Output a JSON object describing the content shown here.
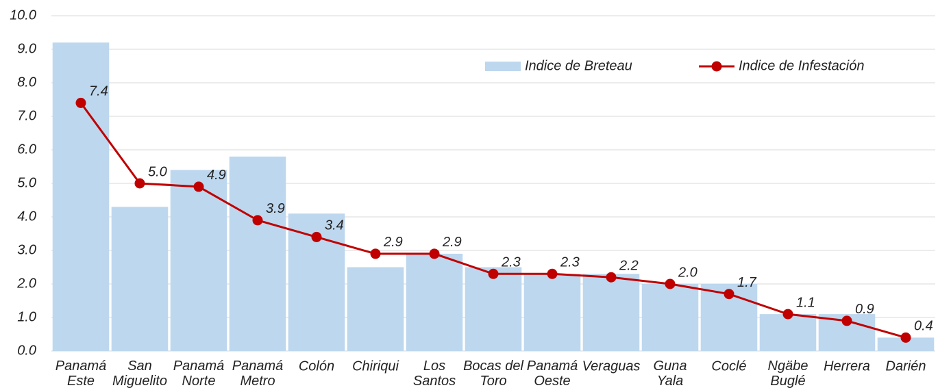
{
  "chart_data": {
    "type": "bar_line",
    "categories": [
      "Panamá\nEste",
      "San\nMiguelito",
      "Panamá\nNorte",
      "Panamá\nMetro",
      "Colón",
      "Chiriqui",
      "Los\nSantos",
      "Bocas del\nToro",
      "Panamá\nOeste",
      "Veraguas",
      "Guna\nYala",
      "Coclé",
      "Ngäbe\nBuglé",
      "Herrera",
      "Darién"
    ],
    "series": [
      {
        "name": "Indice de Breteau",
        "type": "bar",
        "color": "#bdd7ee",
        "values": [
          9.2,
          4.3,
          5.4,
          5.8,
          4.1,
          2.5,
          2.9,
          2.5,
          2.3,
          2.3,
          2.0,
          2.0,
          1.1,
          1.1,
          0.4
        ]
      },
      {
        "name": "Indice de Infestación",
        "type": "line",
        "color": "#c00000",
        "values": [
          7.4,
          5.0,
          4.9,
          3.9,
          3.4,
          2.9,
          2.9,
          2.3,
          2.3,
          2.2,
          2.0,
          1.7,
          1.1,
          0.9,
          0.4
        ],
        "value_labels": [
          "7.4",
          "5.0",
          "4.9",
          "3.9",
          "3.4",
          "2.9",
          "2.9",
          "2.3",
          "2.3",
          "2.2",
          "2.0",
          "1.7",
          "1.1",
          "0.9",
          "0.4"
        ]
      }
    ],
    "ylim": [
      0,
      10
    ],
    "yticks": [
      {
        "value": 0,
        "label": "0.0"
      },
      {
        "value": 1,
        "label": "1.0"
      },
      {
        "value": 2,
        "label": "2.0"
      },
      {
        "value": 3,
        "label": "3.0"
      },
      {
        "value": 4,
        "label": "4.0"
      },
      {
        "value": 5,
        "label": "5.0"
      },
      {
        "value": 6,
        "label": "6.0"
      },
      {
        "value": 7,
        "label": "7.0"
      },
      {
        "value": 8,
        "label": "8.0"
      },
      {
        "value": 9,
        "label": "9.0"
      },
      {
        "value": 10,
        "label": "10.0"
      }
    ],
    "grid": true,
    "legend": "top-right"
  }
}
